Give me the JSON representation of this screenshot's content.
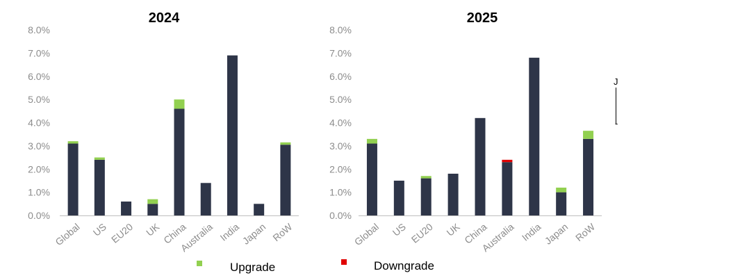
{
  "legend": {
    "upgrade_label": "Upgrade",
    "downgrade_label": "Downgrade"
  },
  "colors": {
    "base": "#2e3548",
    "upgrade": "#92d050",
    "downgrade": "#e00000",
    "axis_text": "#8c8c8c",
    "axis_line": "#bfbfbf"
  },
  "edge_text": [
    "J",
    "-"
  ],
  "chart_data": [
    {
      "type": "bar",
      "stacked": true,
      "title": "2024",
      "categories": [
        "Global",
        "US",
        "EU20",
        "UK",
        "China",
        "Australia",
        "India",
        "Japan",
        "RoW"
      ],
      "series": [
        {
          "values": [
            3.1,
            2.4,
            0.6,
            0.5,
            4.6,
            1.4,
            6.9,
            0.5,
            3.05
          ]
        },
        {
          "name": "Upgrade",
          "values": [
            0.1,
            0.1,
            0.0,
            0.2,
            0.4,
            0.0,
            0.0,
            0.0,
            0.1
          ]
        },
        {
          "name": "Downgrade",
          "values": [
            0,
            0,
            0,
            0,
            0,
            0,
            0,
            0,
            0
          ]
        }
      ],
      "ylim": [
        0,
        8
      ],
      "yticks": [
        "0.0%",
        "1.0%",
        "2.0%",
        "3.0%",
        "4.0%",
        "5.0%",
        "6.0%",
        "7.0%",
        "8.0%"
      ],
      "grid": false,
      "legend_position": "bottom"
    },
    {
      "type": "bar",
      "stacked": true,
      "title": "2025",
      "categories": [
        "Global",
        "US",
        "EU20",
        "UK",
        "China",
        "Australia",
        "India",
        "Japan",
        "RoW"
      ],
      "series": [
        {
          "values": [
            3.1,
            1.5,
            1.6,
            1.8,
            4.2,
            2.3,
            6.8,
            1.0,
            3.3
          ]
        },
        {
          "name": "Upgrade",
          "values": [
            0.2,
            0.0,
            0.1,
            0.0,
            0.0,
            0.0,
            0.0,
            0.2,
            0.35
          ]
        },
        {
          "name": "Downgrade",
          "values": [
            0,
            0,
            0,
            0,
            0,
            0.1,
            0,
            0,
            0
          ]
        }
      ],
      "ylim": [
        0,
        8
      ],
      "yticks": [
        "0.0%",
        "1.0%",
        "2.0%",
        "3.0%",
        "4.0%",
        "5.0%",
        "6.0%",
        "7.0%",
        "8.0%"
      ],
      "grid": false,
      "legend_position": "bottom"
    }
  ]
}
